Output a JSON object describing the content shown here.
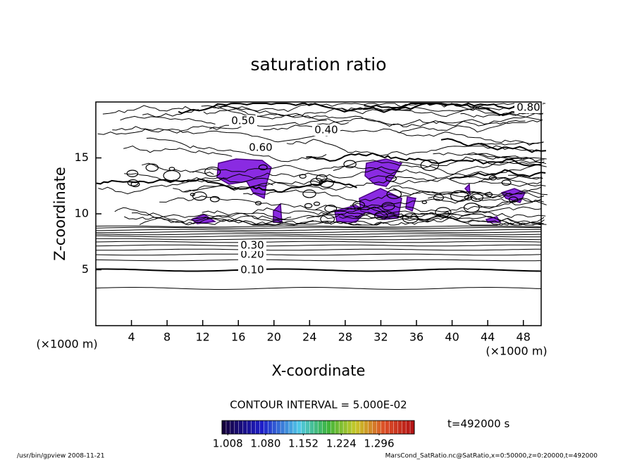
{
  "chart_data": {
    "type": "contour",
    "title": "saturation ratio",
    "x_label": "X-coordinate",
    "y_label": "Z-coordinate",
    "x_unit": "(×1000 m)",
    "y_unit": "(×1000 m)",
    "xlim": [
      0,
      50
    ],
    "xticks": [
      4,
      8,
      12,
      16,
      20,
      24,
      28,
      32,
      36,
      40,
      44,
      48
    ],
    "ylim": [
      0,
      20
    ],
    "yticks": [
      5,
      10,
      15
    ],
    "contour_labels": [
      {
        "value": 0.1,
        "label": "0.10"
      },
      {
        "value": 0.2,
        "label": "0.20"
      },
      {
        "value": 0.3,
        "label": "0.30"
      },
      {
        "value": 0.4,
        "label": "0.40"
      },
      {
        "value": 0.5,
        "label": "0.50"
      },
      {
        "value": 0.6,
        "label": "0.60"
      },
      {
        "value": 0.8,
        "label": "0.80"
      }
    ],
    "contour_interval": "CONTOUR INTERVAL = 5.000E-02",
    "colorbar_lim": [
      0.997,
      1.363
    ],
    "colorbar_ticks": [
      1.008,
      {
        "value": 1.08,
        "label": "1.080"
      },
      1.152,
      1.224,
      1.296
    ],
    "time_label": "t=492000 s",
    "footer_left": "/usr/bin/gpview   2008-11-21",
    "footer_right": "MarsCond_SatRatio.nc@SatRatio,x=0:50000,z=0:20000,t=492000"
  }
}
